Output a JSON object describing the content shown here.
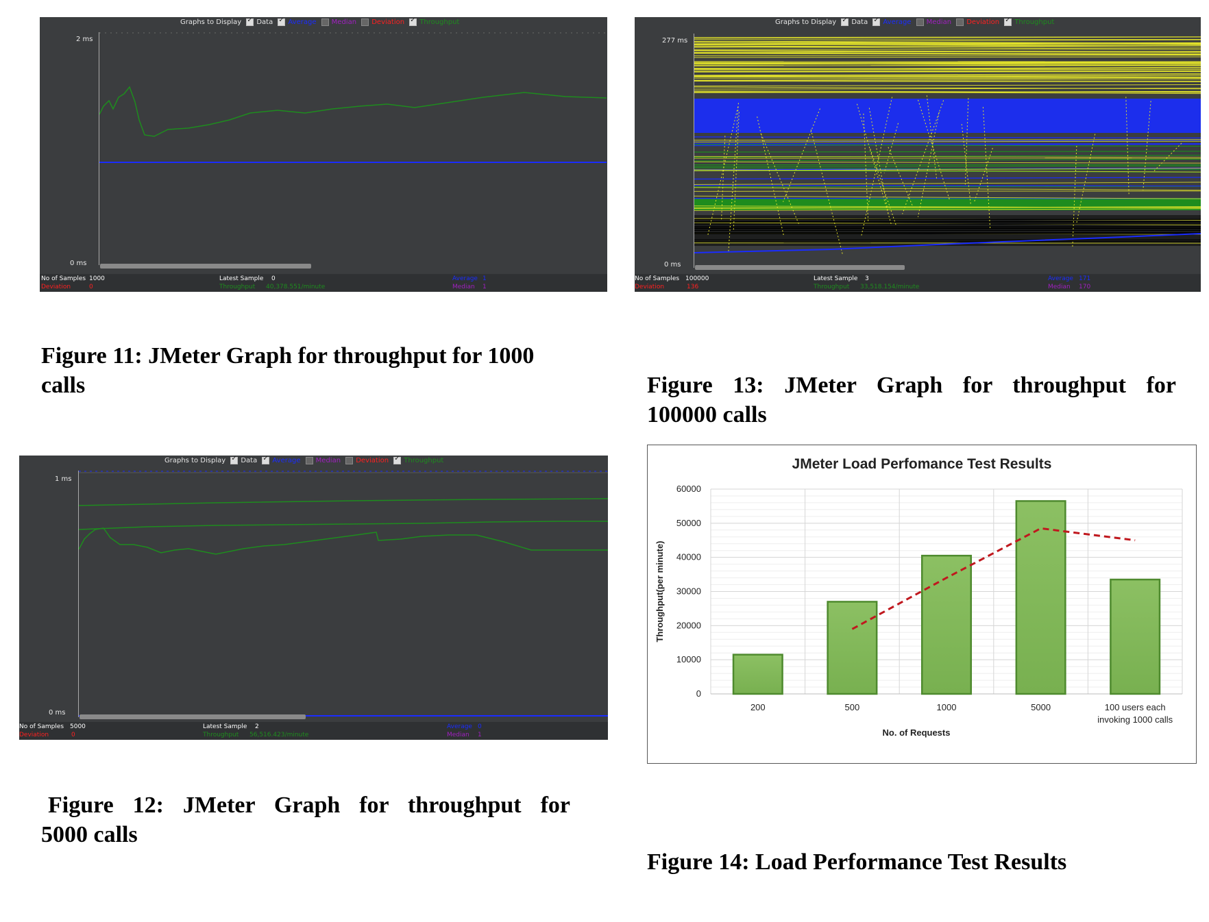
{
  "jmeter_header": {
    "label": "Graphs to Display",
    "items": [
      "Data",
      "Average",
      "Median",
      "Deviation",
      "Throughput"
    ]
  },
  "stats_labels": {
    "samples": "No of Samples",
    "latest": "Latest Sample",
    "average": "Average",
    "deviation": "Deviation",
    "throughput": "Throughput",
    "median": "Median"
  },
  "fig11": {
    "y_max": "2 ms",
    "y_min": "0 ms",
    "samples": "1000",
    "latest": "0",
    "average": "1",
    "deviation": "0",
    "throughput": "40,378.551/minute",
    "median": "1"
  },
  "fig12": {
    "y_max": "1 ms",
    "y_min": "0 ms",
    "samples": "5000",
    "latest": "2",
    "average": "0",
    "deviation": "0",
    "throughput": "56,516.423/minute",
    "median": "1"
  },
  "fig13": {
    "y_max": "277 ms",
    "y_min": "0 ms",
    "samples": "100000",
    "latest": "3",
    "average": "171",
    "deviation": "136",
    "throughput": "33,518.154/minute",
    "median": "170"
  },
  "captions": {
    "fig11_line1": "Figure 11: JMeter Graph for throughput for 1000",
    "fig11_line2": "calls",
    "fig12_line1": "Figure 12: JMeter Graph for throughput for",
    "fig12_line2": "5000 calls",
    "fig13_line1": "Figure 13: JMeter Graph for throughput for",
    "fig13_line2": "100000 calls",
    "fig14": "Figure 14: Load Performance Test Results"
  },
  "colors": {
    "jmeter_bg": "#3b3d3f",
    "throughput": "#1e8c1e",
    "average": "#1a2cff",
    "deviation": "#ff2020",
    "median": "#a020c0",
    "data": "#e6e62a",
    "bar_fill": "#78b050",
    "bar_stroke": "#4e8a2e",
    "trend": "#c0181e"
  },
  "chart_data": {
    "type": "bar",
    "title": "JMeter Load Perfomance Test Results",
    "xlabel": "No. of Requests",
    "ylabel": "Throughput(per minute)",
    "categories": [
      "200",
      "500",
      "1000",
      "5000",
      "100 users each invoking 1000 calls"
    ],
    "category_lines": [
      [
        "200"
      ],
      [
        "500"
      ],
      [
        "1000"
      ],
      [
        "5000"
      ],
      [
        "100 users each",
        "invoking 1000 calls"
      ]
    ],
    "values": [
      11500,
      27000,
      40500,
      56500,
      33500
    ],
    "ylim": [
      0,
      60000
    ],
    "yticks": [
      "0",
      "10000",
      "20000",
      "30000",
      "40000",
      "50000",
      "60000"
    ],
    "trendline": {
      "style": "dashed",
      "values": [
        null,
        19000,
        34000,
        48500,
        45000
      ]
    },
    "grid": true
  }
}
